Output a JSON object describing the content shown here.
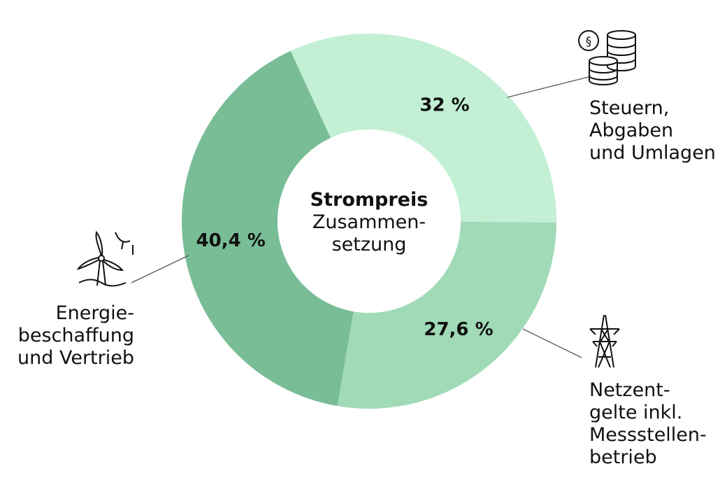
{
  "chart_data": {
    "type": "pie",
    "center_label": {
      "title": "Strompreis",
      "subtitle_lines": [
        "Zusammen-",
        "setzung"
      ]
    },
    "slices": [
      {
        "name": "Steuern, Abgaben und Umlagen",
        "label_lines": [
          "Steuern,",
          "Abgaben",
          "und Umlagen"
        ],
        "value": 32,
        "value_label": "32 %",
        "color": "#c3f0d4",
        "icon": "coins-paragraph-icon"
      },
      {
        "name": "Netzentgelte inkl. Messstellenbetrieb",
        "label_lines": [
          "Netzent-",
          "gelte inkl.",
          "Messstellen-",
          "betrieb"
        ],
        "value": 27.6,
        "value_label": "27,6 %",
        "color": "#a0dab7",
        "icon": "power-pylon-icon"
      },
      {
        "name": "Energiebeschaffung und Vertrieb",
        "label_lines": [
          "Energie-",
          "beschaffung",
          "und Vertrieb"
        ],
        "value": 40.4,
        "value_label": "40,4 %",
        "color": "#79bd96",
        "icon": "wind-turbine-icon"
      }
    ]
  }
}
